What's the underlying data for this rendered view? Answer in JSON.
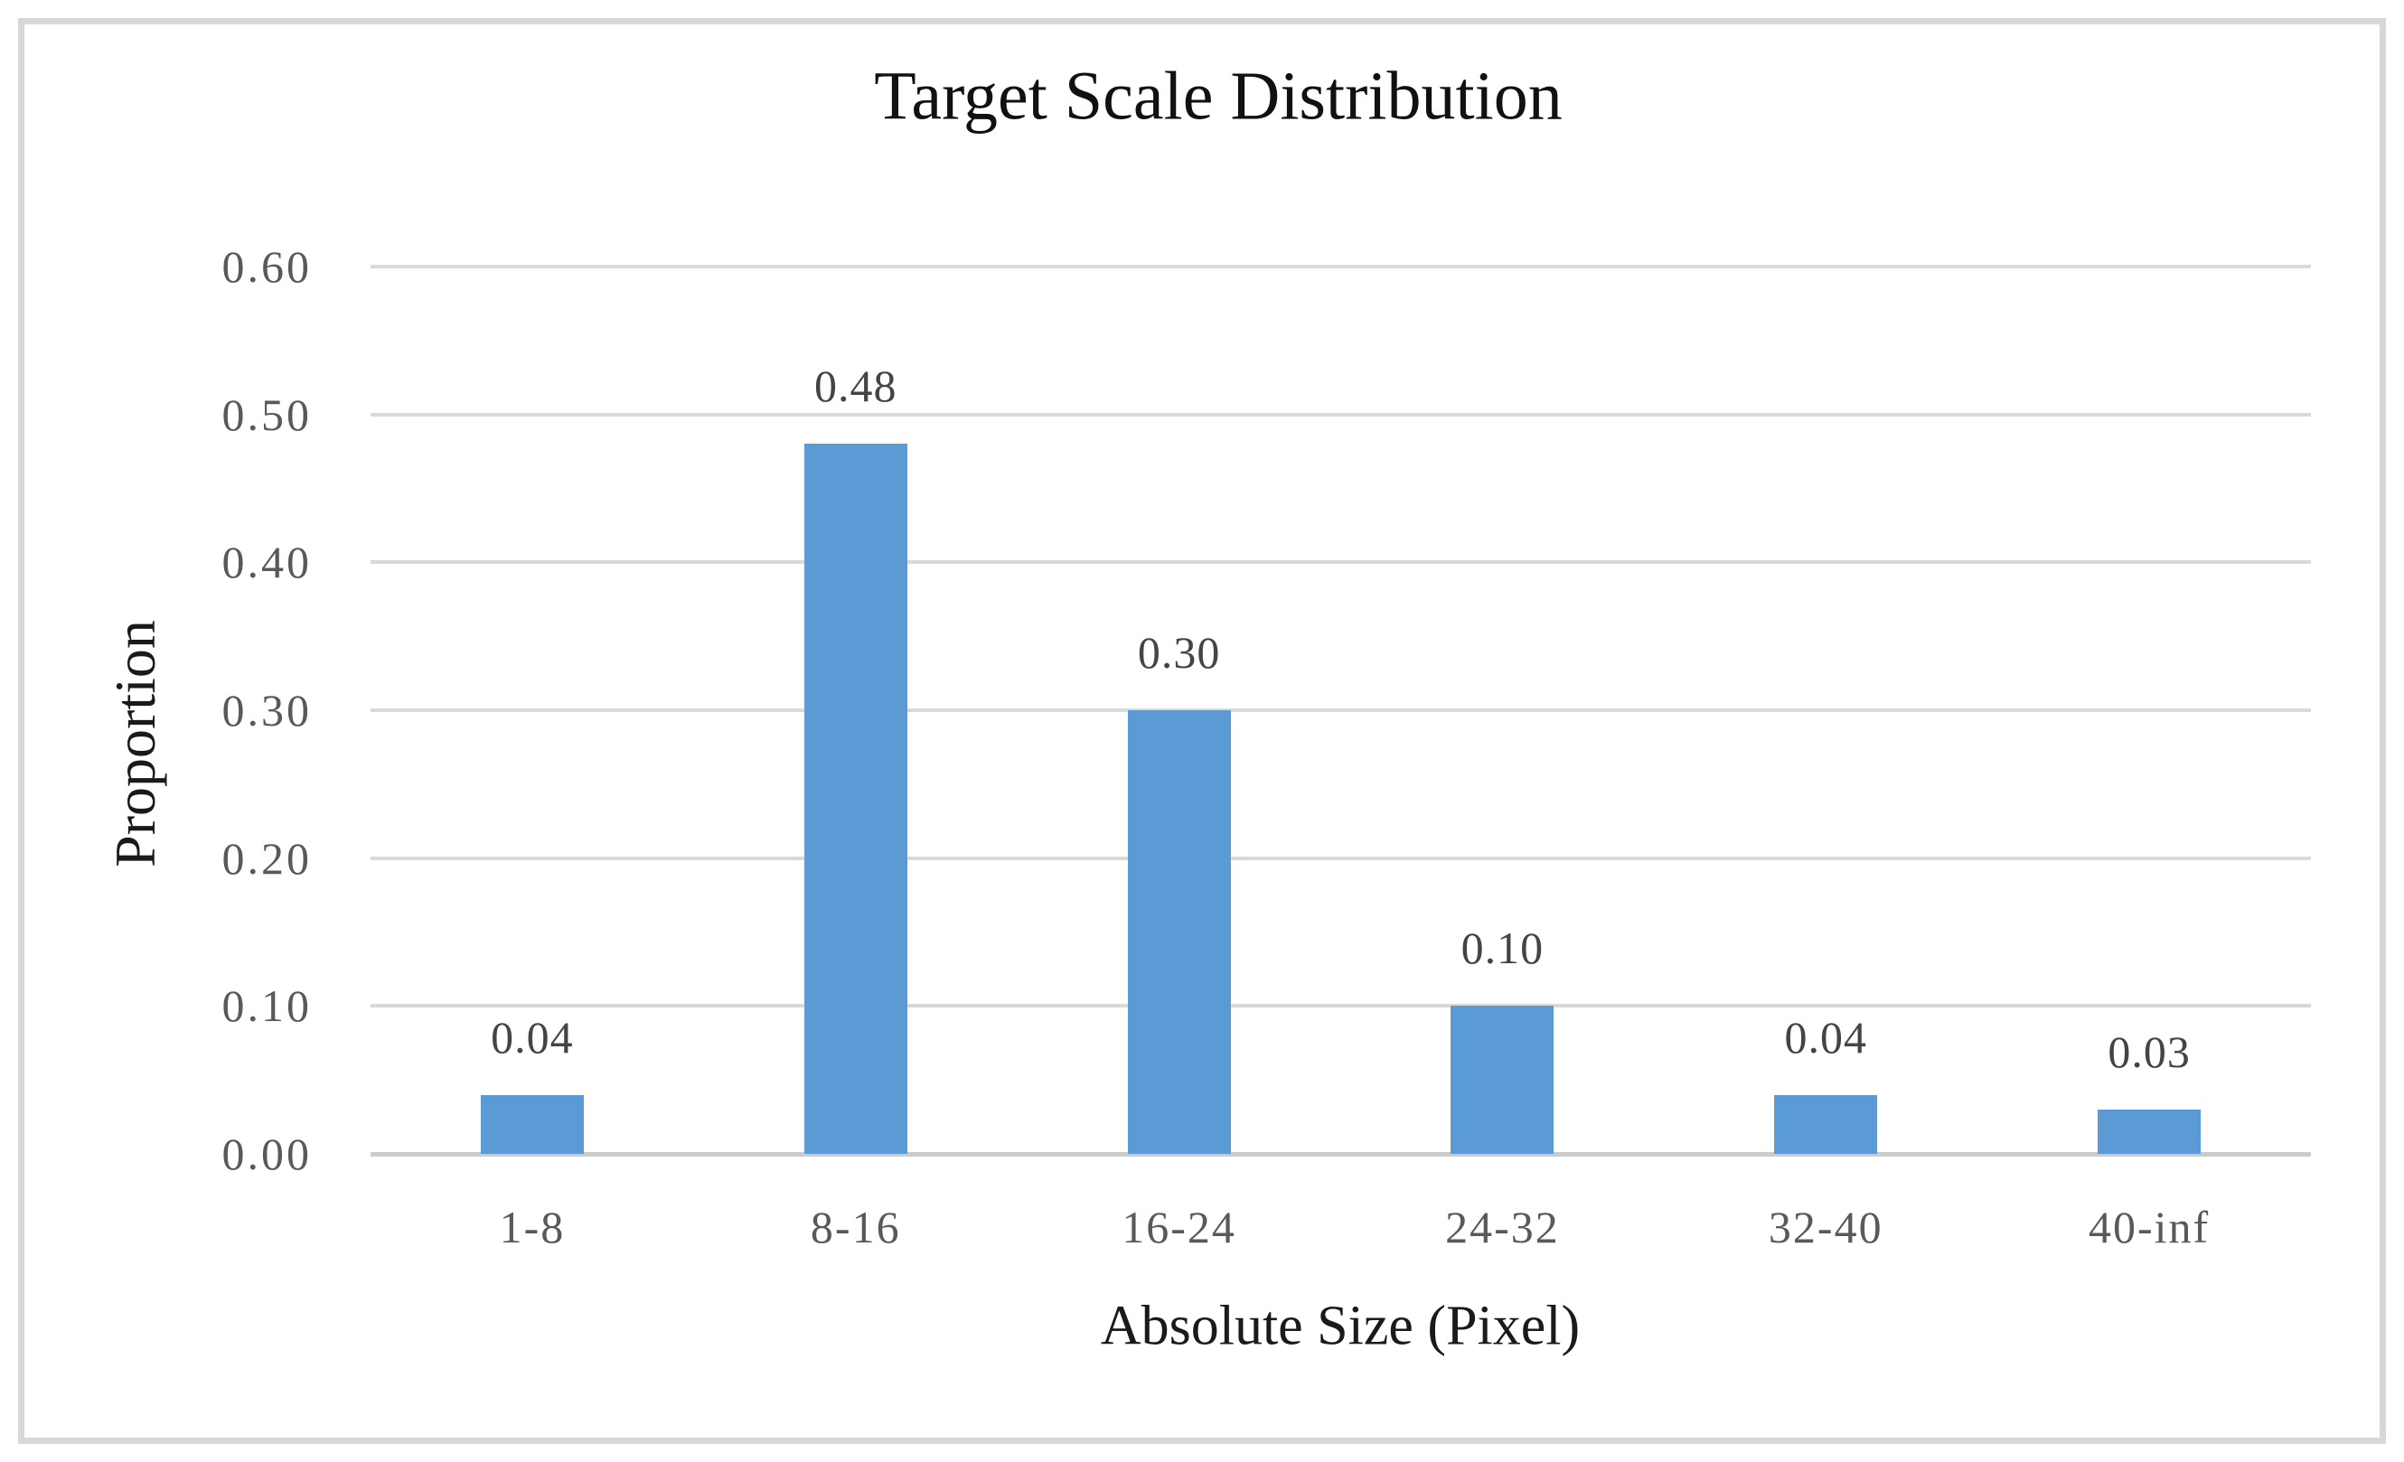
{
  "chart_data": {
    "type": "bar",
    "title": "Target Scale Distribution",
    "xlabel": "Absolute Size (Pixel)",
    "ylabel": "Proportion",
    "categories": [
      "1-8",
      "8-16",
      "16-24",
      "24-32",
      "32-40",
      "40-inf"
    ],
    "values": [
      0.04,
      0.48,
      0.3,
      0.1,
      0.04,
      0.03
    ],
    "data_labels": [
      "0.04",
      "0.48",
      "0.30",
      "0.10",
      "0.04",
      "0.03"
    ],
    "yticks": [
      "0.00",
      "0.10",
      "0.20",
      "0.30",
      "0.40",
      "0.50",
      "0.60"
    ],
    "ylim": [
      0,
      0.6
    ],
    "grid": true,
    "legend_position": "none",
    "colors": {
      "bar_fill": "#5b9bd5",
      "gridline": "#d9d9d9",
      "axis_line": "#cbcbcb",
      "tick_label": "#595959",
      "data_label": "#444444",
      "title_text": "#111111",
      "axis_title_text": "#1a1a1a",
      "frame_border": "#d7d7d7",
      "background": "#ffffff"
    }
  }
}
